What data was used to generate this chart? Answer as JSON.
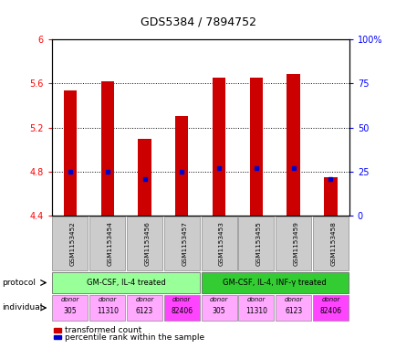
{
  "title": "GDS5384 / 7894752",
  "samples": [
    "GSM1153452",
    "GSM1153454",
    "GSM1153456",
    "GSM1153457",
    "GSM1153453",
    "GSM1153455",
    "GSM1153459",
    "GSM1153458"
  ],
  "bar_values": [
    5.54,
    5.62,
    5.1,
    5.3,
    5.65,
    5.65,
    5.69,
    4.75
  ],
  "bar_base": 4.4,
  "percentile_values": [
    4.8,
    4.8,
    4.73,
    4.8,
    4.83,
    4.83,
    4.83,
    4.73
  ],
  "ylim": [
    4.4,
    6.0
  ],
  "yticks": [
    4.4,
    4.8,
    5.2,
    5.6,
    6.0
  ],
  "right_yticks": [
    0,
    25,
    50,
    75,
    100
  ],
  "right_ytick_labels": [
    "0",
    "25",
    "50",
    "75",
    "100%"
  ],
  "bar_color": "#cc0000",
  "percentile_color": "#0000cc",
  "sample_bg": "#cccccc",
  "protocol_groups": [
    {
      "label": "GM-CSF, IL-4 treated",
      "start": 0,
      "end": 3,
      "color": "#99ff99"
    },
    {
      "label": "GM-CSF, IL-4, INF-γ treated",
      "start": 4,
      "end": 7,
      "color": "#33cc33"
    }
  ],
  "individual_labels": [
    "donor\n305",
    "donor\n11310",
    "donor\n6123",
    "donor\n82406",
    "donor\n305",
    "donor\n11310",
    "donor\n6123",
    "donor\n82406"
  ],
  "individual_colors": [
    "#ffaaff",
    "#ffaaff",
    "#ffaaff",
    "#ff44ff",
    "#ffaaff",
    "#ffaaff",
    "#ffaaff",
    "#ff44ff"
  ],
  "protocol_label": "protocol",
  "individual_label": "individual",
  "legend_red": "transformed count",
  "legend_blue": "percentile rank within the sample"
}
